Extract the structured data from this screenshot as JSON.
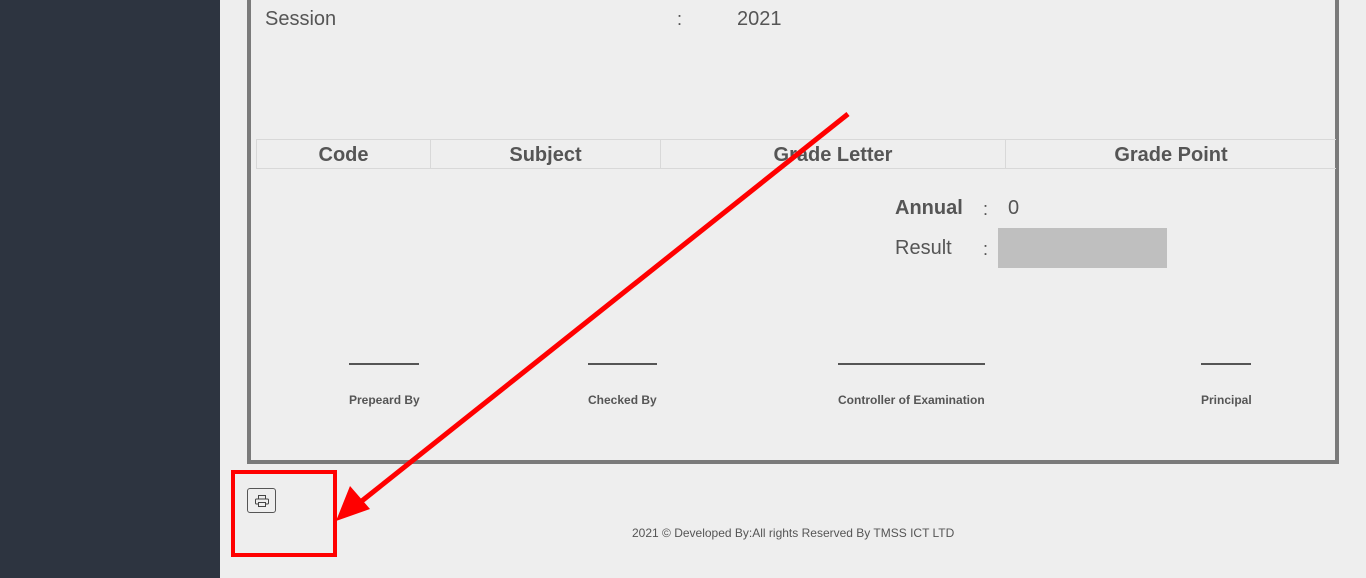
{
  "session": {
    "label": "Session",
    "colon": ":",
    "value": "2021"
  },
  "grade_table": {
    "headers": [
      "Code",
      "Subject",
      "Grade Letter",
      "Grade Point"
    ]
  },
  "annual": {
    "label": "Annual",
    "colon": ":",
    "value": "0"
  },
  "result": {
    "label": "Result",
    "colon": ":"
  },
  "signatures": [
    "Prepeard By",
    "Checked By",
    "Controller of Examination",
    "Principal"
  ],
  "footer": {
    "text": "2021 © Developed By:All rights Reserved By TMSS ICT LTD"
  },
  "print": {
    "icon": "printer-icon"
  },
  "annotation": {
    "color": "#ff0000"
  }
}
